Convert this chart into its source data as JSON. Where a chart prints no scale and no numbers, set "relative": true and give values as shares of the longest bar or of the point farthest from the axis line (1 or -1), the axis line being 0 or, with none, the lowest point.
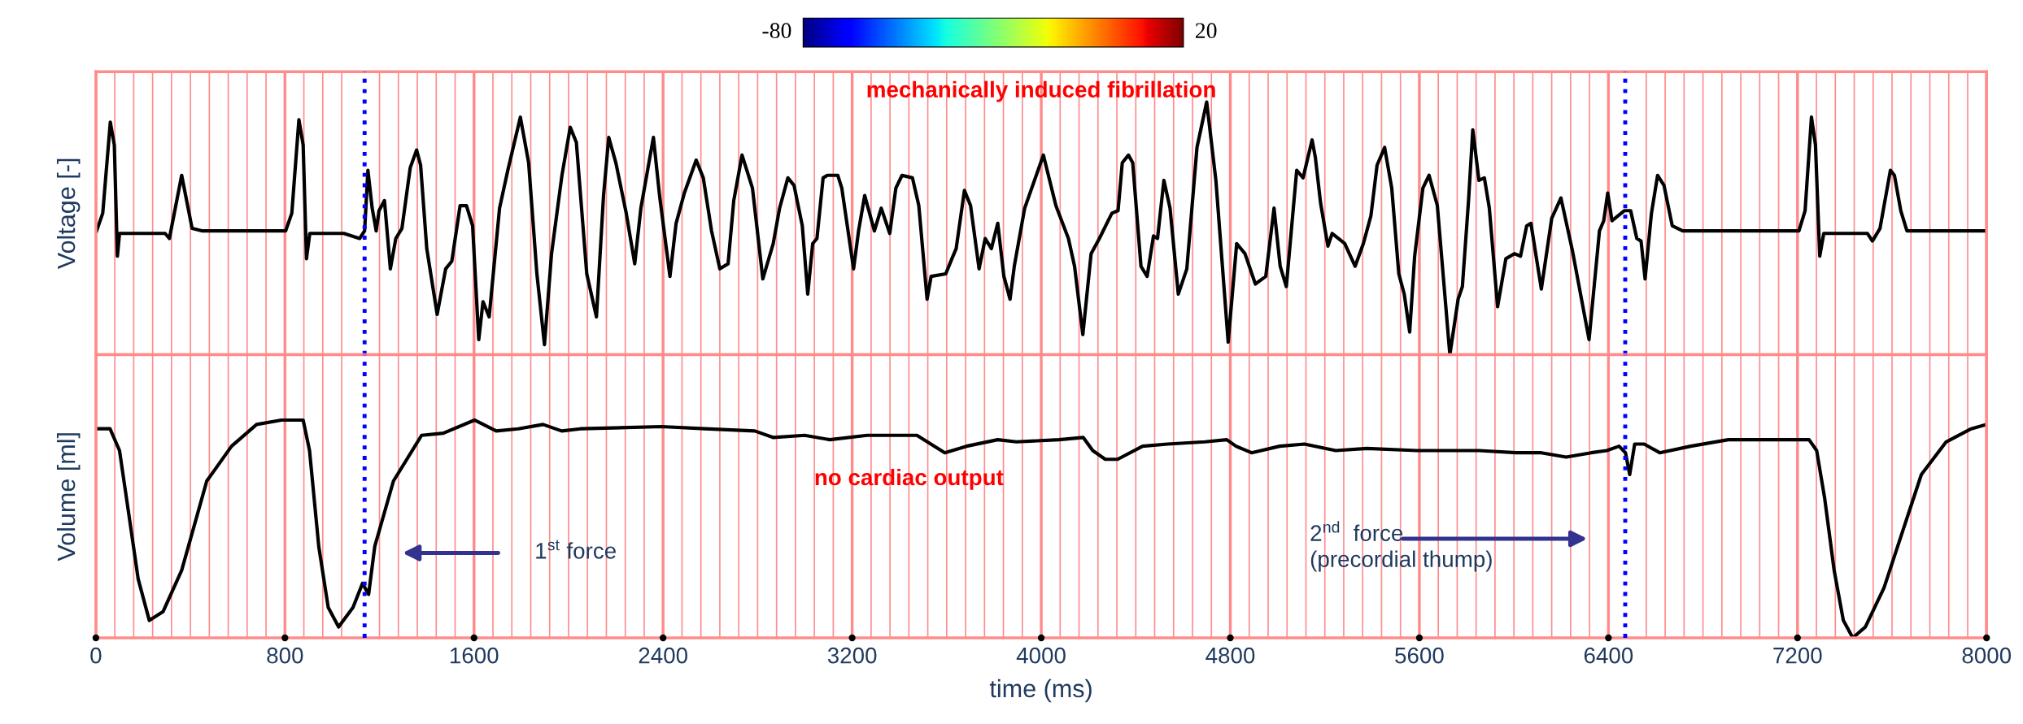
{
  "chart_data": [
    {
      "type": "line",
      "ylabel": "Voltage [-]",
      "relative": true,
      "xlim": [
        0,
        8000
      ],
      "xticks": [
        0,
        {
          "value": 80,
          "label": null
        },
        {
          "value": 160,
          "label": null
        },
        {
          "value": 240,
          "label": null
        },
        {
          "value": 320,
          "label": null
        },
        {
          "value": 400,
          "label": null
        },
        {
          "value": 480,
          "label": null
        },
        {
          "value": 560,
          "label": null
        },
        {
          "value": 640,
          "label": null
        },
        {
          "value": 720,
          "label": null
        },
        800,
        {
          "value": 880,
          "label": null
        },
        {
          "value": 960,
          "label": null
        },
        {
          "value": 1040,
          "label": null
        },
        {
          "value": 1200,
          "label": null
        },
        {
          "value": 1280,
          "label": null
        },
        {
          "value": 1360,
          "label": null
        },
        {
          "value": 1440,
          "label": null
        },
        {
          "value": 1520,
          "label": null
        },
        1600,
        {
          "value": 1680,
          "label": null
        },
        {
          "value": 1760,
          "label": null
        },
        {
          "value": 1840,
          "label": null
        },
        {
          "value": 1920,
          "label": null
        },
        {
          "value": 2000,
          "label": null
        },
        {
          "value": 2080,
          "label": null
        },
        {
          "value": 2160,
          "label": null
        },
        {
          "value": 2240,
          "label": null
        },
        {
          "value": 2320,
          "label": null
        },
        2400,
        {
          "value": 2480,
          "label": null
        },
        {
          "value": 2560,
          "label": null
        },
        {
          "value": 2640,
          "label": null
        },
        {
          "value": 2720,
          "label": null
        },
        {
          "value": 2800,
          "label": null
        },
        {
          "value": 2880,
          "label": null
        },
        {
          "value": 2960,
          "label": null
        },
        {
          "value": 3040,
          "label": null
        },
        {
          "value": 3120,
          "label": null
        },
        3200,
        {
          "value": 3280,
          "label": null
        },
        {
          "value": 3360,
          "label": null
        },
        {
          "value": 3440,
          "label": null
        },
        {
          "value": 3520,
          "label": null
        },
        {
          "value": 3600,
          "label": null
        },
        {
          "value": 3680,
          "label": null
        },
        {
          "value": 3760,
          "label": null
        },
        {
          "value": 3840,
          "label": null
        },
        {
          "value": 3920,
          "label": null
        },
        4000,
        {
          "value": 4080,
          "label": null
        },
        {
          "value": 4160,
          "label": null
        },
        {
          "value": 4240,
          "label": null
        },
        {
          "value": 4320,
          "label": null
        },
        {
          "value": 4400,
          "label": null
        },
        {
          "value": 4480,
          "label": null
        },
        {
          "value": 4560,
          "label": null
        },
        {
          "value": 4640,
          "label": null
        },
        {
          "value": 4720,
          "label": null
        },
        4800,
        {
          "value": 4880,
          "label": null
        },
        {
          "value": 4960,
          "label": null
        },
        {
          "value": 5040,
          "label": null
        },
        {
          "value": 5120,
          "label": null
        },
        {
          "value": 5200,
          "label": null
        },
        {
          "value": 5280,
          "label": null
        },
        {
          "value": 5360,
          "label": null
        },
        {
          "value": 5440,
          "label": null
        },
        {
          "value": 5520,
          "label": null
        },
        5600,
        {
          "value": 5680,
          "label": null
        },
        {
          "value": 5760,
          "label": null
        },
        {
          "value": 5840,
          "label": null
        },
        {
          "value": 5920,
          "label": null
        },
        {
          "value": 6000,
          "label": null
        },
        {
          "value": 6080,
          "label": null
        },
        {
          "value": 6160,
          "label": null
        },
        {
          "value": 6240,
          "label": null
        },
        {
          "value": 6320,
          "label": null
        },
        6400,
        {
          "value": 6560,
          "label": null
        },
        {
          "value": 6640,
          "label": null
        },
        {
          "value": 6720,
          "label": null
        },
        {
          "value": 6800,
          "label": null
        },
        {
          "value": 6880,
          "label": null
        },
        {
          "value": 6960,
          "label": null
        },
        {
          "value": 7040,
          "label": null
        },
        {
          "value": 7120,
          "label": null
        },
        7200,
        {
          "value": 7280,
          "label": null
        },
        {
          "value": 7360,
          "label": null
        },
        {
          "value": 7440,
          "label": null
        },
        {
          "value": 7520,
          "label": null
        },
        {
          "value": 7600,
          "label": null
        },
        {
          "value": 7680,
          "label": null
        },
        {
          "value": 7760,
          "label": null
        },
        {
          "value": 7840,
          "label": null
        },
        {
          "value": 7920,
          "label": null
        },
        8000
      ],
      "tick_labels": false,
      "grid": "x",
      "clim": [
        -80,
        20
      ],
      "cticks": [
        -80,
        20
      ],
      "annotations": [
        "mechanically induced fibrillation"
      ],
      "ref_lines": [
        {
          "axis": "x",
          "value": 1137,
          "label": null,
          "color": "#0000ff",
          "line_style": "dotted"
        },
        {
          "axis": "x",
          "value": 6471,
          "label": null,
          "color": "#0000ff",
          "line_style": "dotted"
        }
      ],
      "series": [
        {
          "color": "#000000",
          "x": [
            3,
            29,
            61,
            78,
            91,
            100,
            293,
            311,
            363,
            407,
            451,
            803,
            829,
            859,
            877,
            891,
            905,
            1049,
            1116,
            1137,
            1151,
            1169,
            1186,
            1198,
            1221,
            1246,
            1269,
            1295,
            1330,
            1357,
            1374,
            1400,
            1444,
            1480,
            1506,
            1541,
            1568,
            1594,
            1620,
            1638,
            1664,
            1708,
            1743,
            1796,
            1831,
            1866,
            1898,
            1928,
            1972,
            2007,
            2033,
            2077,
            2118,
            2148,
            2170,
            2200,
            2244,
            2280,
            2306,
            2359,
            2385,
            2429,
            2455,
            2490,
            2540,
            2570,
            2605,
            2640,
            2675,
            2699,
            2734,
            2778,
            2822,
            2866,
            2893,
            2928,
            2954,
            2989,
            3012,
            3033,
            3051,
            3077,
            3095,
            3139,
            3156,
            3206,
            3227,
            3253,
            3294,
            3323,
            3359,
            3385,
            3411,
            3455,
            3482,
            3517,
            3534,
            3596,
            3622,
            3640,
            3675,
            3701,
            3737,
            3763,
            3789,
            3816,
            3842,
            3868,
            3886,
            3930,
            4009,
            4062,
            4115,
            4141,
            4176,
            4211,
            4246,
            4299,
            4325,
            4343,
            4369,
            4387,
            4422,
            4448,
            4475,
            4492,
            4519,
            4545,
            4580,
            4616,
            4659,
            4700,
            4739,
            4765,
            4791,
            4827,
            4862,
            4906,
            4950,
            4985,
            5011,
            5037,
            5081,
            5108,
            5146,
            5160,
            5182,
            5213,
            5231,
            5284,
            5328,
            5363,
            5395,
            5421,
            5453,
            5483,
            5513,
            5536,
            5559,
            5580,
            5615,
            5641,
            5676,
            5729,
            5764,
            5782,
            5808,
            5826,
            5852,
            5875,
            5896,
            5931,
            5966,
            6002,
            6028,
            6054,
            6072,
            6116,
            6160,
            6199,
            6248,
            6318,
            6362,
            6380,
            6397,
            6415,
            6467,
            6494,
            6520,
            6538,
            6555,
            6582,
            6608,
            6635,
            6670,
            6714,
            7206,
            7232,
            7259,
            7276,
            7294,
            7311,
            7496,
            7517,
            7549,
            7593,
            7610,
            7637,
            7663,
            7698,
            8000
          ],
          "values": [
            0.49,
            0.56,
            0.92,
            0.83,
            0.39,
            0.48,
            0.48,
            0.46,
            0.71,
            0.5,
            0.49,
            0.49,
            0.56,
            0.93,
            0.83,
            0.38,
            0.48,
            0.48,
            0.46,
            0.49,
            0.73,
            0.58,
            0.49,
            0.57,
            0.61,
            0.34,
            0.46,
            0.5,
            0.74,
            0.81,
            0.75,
            0.42,
            0.16,
            0.34,
            0.37,
            0.59,
            0.59,
            0.51,
            0.06,
            0.21,
            0.15,
            0.58,
            0.73,
            0.94,
            0.76,
            0.32,
            0.04,
            0.4,
            0.71,
            0.9,
            0.84,
            0.32,
            0.15,
            0.63,
            0.86,
            0.76,
            0.56,
            0.36,
            0.58,
            0.86,
            0.63,
            0.31,
            0.52,
            0.64,
            0.77,
            0.7,
            0.49,
            0.34,
            0.36,
            0.61,
            0.79,
            0.66,
            0.3,
            0.44,
            0.58,
            0.7,
            0.67,
            0.51,
            0.24,
            0.44,
            0.46,
            0.7,
            0.71,
            0.71,
            0.66,
            0.34,
            0.49,
            0.63,
            0.49,
            0.58,
            0.48,
            0.66,
            0.71,
            0.7,
            0.59,
            0.22,
            0.31,
            0.32,
            0.38,
            0.42,
            0.65,
            0.59,
            0.34,
            0.46,
            0.42,
            0.52,
            0.31,
            0.22,
            0.35,
            0.58,
            0.79,
            0.59,
            0.46,
            0.35,
            0.08,
            0.4,
            0.46,
            0.56,
            0.57,
            0.76,
            0.79,
            0.76,
            0.35,
            0.31,
            0.47,
            0.46,
            0.69,
            0.58,
            0.24,
            0.34,
            0.82,
            1.0,
            0.69,
            0.37,
            0.05,
            0.44,
            0.4,
            0.28,
            0.31,
            0.58,
            0.35,
            0.27,
            0.73,
            0.7,
            0.85,
            0.78,
            0.6,
            0.43,
            0.48,
            0.44,
            0.35,
            0.44,
            0.55,
            0.75,
            0.82,
            0.66,
            0.32,
            0.24,
            0.09,
            0.39,
            0.66,
            0.71,
            0.59,
            0.0,
            0.22,
            0.27,
            0.61,
            0.89,
            0.69,
            0.7,
            0.58,
            0.19,
            0.38,
            0.4,
            0.39,
            0.51,
            0.52,
            0.26,
            0.54,
            0.62,
            0.41,
            0.06,
            0.49,
            0.53,
            0.64,
            0.53,
            0.57,
            0.57,
            0.46,
            0.45,
            0.3,
            0.56,
            0.71,
            0.67,
            0.51,
            0.49,
            0.49,
            0.57,
            0.94,
            0.83,
            0.39,
            0.48,
            0.48,
            0.45,
            0.5,
            0.73,
            0.71,
            0.57,
            0.49,
            0.49,
            0.49
          ]
        }
      ]
    },
    {
      "type": "line",
      "ylabel": "Volume [ml]",
      "xlabel": "time (ms)",
      "relative": true,
      "xlim": [
        0,
        8000
      ],
      "xticks": [
        0,
        {
          "value": 80,
          "label": null
        },
        {
          "value": 160,
          "label": null
        },
        {
          "value": 240,
          "label": null
        },
        {
          "value": 320,
          "label": null
        },
        {
          "value": 400,
          "label": null
        },
        {
          "value": 480,
          "label": null
        },
        {
          "value": 560,
          "label": null
        },
        {
          "value": 640,
          "label": null
        },
        {
          "value": 720,
          "label": null
        },
        800,
        {
          "value": 880,
          "label": null
        },
        {
          "value": 960,
          "label": null
        },
        {
          "value": 1040,
          "label": null
        },
        {
          "value": 1200,
          "label": null
        },
        {
          "value": 1280,
          "label": null
        },
        {
          "value": 1360,
          "label": null
        },
        {
          "value": 1440,
          "label": null
        },
        {
          "value": 1520,
          "label": null
        },
        1600,
        {
          "value": 1680,
          "label": null
        },
        {
          "value": 1760,
          "label": null
        },
        {
          "value": 1840,
          "label": null
        },
        {
          "value": 1920,
          "label": null
        },
        {
          "value": 2000,
          "label": null
        },
        {
          "value": 2080,
          "label": null
        },
        {
          "value": 2160,
          "label": null
        },
        {
          "value": 2240,
          "label": null
        },
        {
          "value": 2320,
          "label": null
        },
        2400,
        {
          "value": 2480,
          "label": null
        },
        {
          "value": 2560,
          "label": null
        },
        {
          "value": 2640,
          "label": null
        },
        {
          "value": 2720,
          "label": null
        },
        {
          "value": 2800,
          "label": null
        },
        {
          "value": 2880,
          "label": null
        },
        {
          "value": 2960,
          "label": null
        },
        {
          "value": 3040,
          "label": null
        },
        {
          "value": 3120,
          "label": null
        },
        3200,
        {
          "value": 3280,
          "label": null
        },
        {
          "value": 3360,
          "label": null
        },
        {
          "value": 3440,
          "label": null
        },
        {
          "value": 3520,
          "label": null
        },
        {
          "value": 3600,
          "label": null
        },
        {
          "value": 3680,
          "label": null
        },
        {
          "value": 3760,
          "label": null
        },
        {
          "value": 3840,
          "label": null
        },
        {
          "value": 3920,
          "label": null
        },
        4000,
        {
          "value": 4080,
          "label": null
        },
        {
          "value": 4160,
          "label": null
        },
        {
          "value": 4240,
          "label": null
        },
        {
          "value": 4320,
          "label": null
        },
        {
          "value": 4400,
          "label": null
        },
        {
          "value": 4480,
          "label": null
        },
        {
          "value": 4560,
          "label": null
        },
        {
          "value": 4640,
          "label": null
        },
        {
          "value": 4720,
          "label": null
        },
        4800,
        {
          "value": 4880,
          "label": null
        },
        {
          "value": 4960,
          "label": null
        },
        {
          "value": 5040,
          "label": null
        },
        {
          "value": 5120,
          "label": null
        },
        {
          "value": 5200,
          "label": null
        },
        {
          "value": 5280,
          "label": null
        },
        {
          "value": 5360,
          "label": null
        },
        {
          "value": 5440,
          "label": null
        },
        {
          "value": 5520,
          "label": null
        },
        5600,
        {
          "value": 5680,
          "label": null
        },
        {
          "value": 5760,
          "label": null
        },
        {
          "value": 5840,
          "label": null
        },
        {
          "value": 5920,
          "label": null
        },
        {
          "value": 6000,
          "label": null
        },
        {
          "value": 6080,
          "label": null
        },
        {
          "value": 6160,
          "label": null
        },
        {
          "value": 6240,
          "label": null
        },
        {
          "value": 6320,
          "label": null
        },
        6400,
        {
          "value": 6560,
          "label": null
        },
        {
          "value": 6640,
          "label": null
        },
        {
          "value": 6720,
          "label": null
        },
        {
          "value": 6800,
          "label": null
        },
        {
          "value": 6880,
          "label": null
        },
        {
          "value": 6960,
          "label": null
        },
        {
          "value": 7040,
          "label": null
        },
        {
          "value": 7120,
          "label": null
        },
        7200,
        {
          "value": 7280,
          "label": null
        },
        {
          "value": 7360,
          "label": null
        },
        {
          "value": 7440,
          "label": null
        },
        {
          "value": 7520,
          "label": null
        },
        {
          "value": 7600,
          "label": null
        },
        {
          "value": 7680,
          "label": null
        },
        {
          "value": 7760,
          "label": null
        },
        {
          "value": 7840,
          "label": null
        },
        {
          "value": 7920,
          "label": null
        },
        8000
      ],
      "tick_labels": "x",
      "grid": "x",
      "annotations": [
        "no cardiac output",
        "1$^{st}$ force",
        "2$^{nd}$  force\n(precordial thump)"
      ],
      "ref_lines": [
        {
          "axis": "x",
          "value": 1137,
          "label": null,
          "color": "#0000ff",
          "line_style": "dotted"
        },
        {
          "axis": "x",
          "value": 6471,
          "label": null,
          "color": "#0000ff",
          "line_style": "dotted"
        }
      ],
      "series": [
        {
          "color": "#000000",
          "x": [
            0,
            60,
            100,
            139,
            179,
            226,
            284,
            363,
            469,
            574,
            680,
            785,
            877,
            904,
            943,
            983,
            1027,
            1088,
            1128,
            1154,
            1180,
            1259,
            1378,
            1470,
            1602,
            1694,
            1787,
            1892,
            1971,
            2050,
            2393,
            2577,
            2788,
            2867,
            2999,
            3105,
            3263,
            3368,
            3474,
            3592,
            3684,
            3816,
            3895,
            4075,
            4178,
            4218,
            4271,
            4323,
            4429,
            4534,
            4692,
            4785,
            4824,
            4890,
            5009,
            5114,
            5246,
            5378,
            5589,
            5852,
            6010,
            6116,
            6221,
            6327,
            6393,
            6445,
            6472,
            6490,
            6511,
            6551,
            6617,
            6748,
            6907,
            7249,
            7281,
            7315,
            7355,
            7394,
            7434,
            7487,
            7566,
            7645,
            7724,
            7829,
            7935,
            8000
          ],
          "values": [
            0.96,
            0.96,
            0.86,
            0.57,
            0.27,
            0.08,
            0.12,
            0.31,
            0.72,
            0.88,
            0.98,
            1.0,
            1.0,
            0.86,
            0.42,
            0.14,
            0.05,
            0.14,
            0.25,
            0.2,
            0.42,
            0.72,
            0.93,
            0.94,
            1.0,
            0.95,
            0.96,
            0.98,
            0.95,
            0.96,
            0.97,
            0.96,
            0.95,
            0.92,
            0.93,
            0.91,
            0.93,
            0.93,
            0.93,
            0.85,
            0.88,
            0.91,
            0.9,
            0.91,
            0.92,
            0.86,
            0.82,
            0.82,
            0.88,
            0.89,
            0.9,
            0.91,
            0.88,
            0.85,
            0.88,
            0.89,
            0.86,
            0.87,
            0.86,
            0.86,
            0.85,
            0.85,
            0.83,
            0.85,
            0.86,
            0.88,
            0.85,
            0.75,
            0.89,
            0.89,
            0.85,
            0.88,
            0.91,
            0.91,
            0.86,
            0.64,
            0.31,
            0.08,
            0.0,
            0.05,
            0.23,
            0.49,
            0.75,
            0.9,
            0.96,
            0.98
          ]
        }
      ]
    }
  ]
}
